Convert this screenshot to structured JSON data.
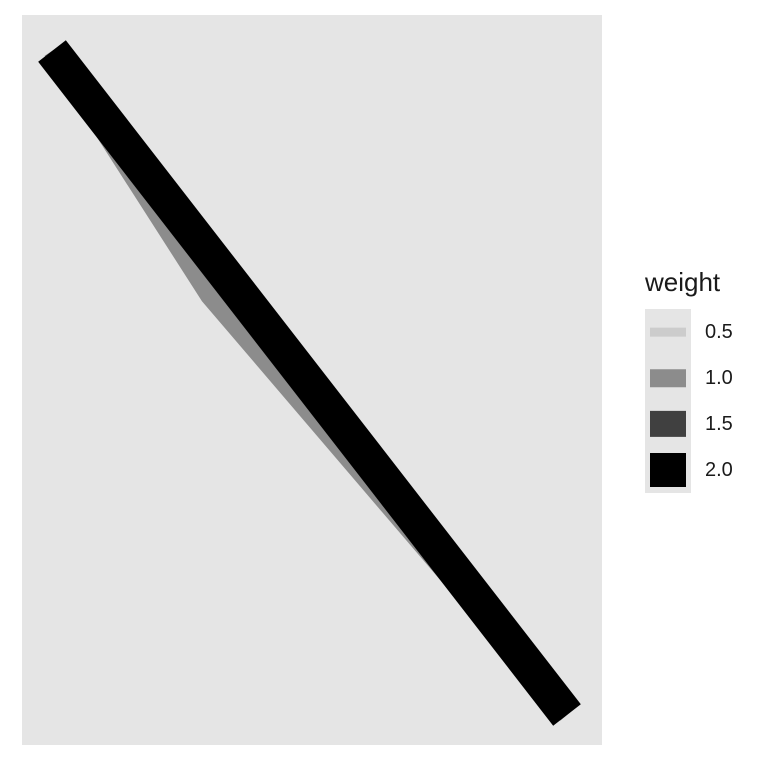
{
  "chart_data": {
    "type": "network",
    "title": "",
    "xlabel": "",
    "ylabel": "",
    "grid": false,
    "axes": false,
    "legend": {
      "title": "weight",
      "placement": "right",
      "entries": [
        {
          "label": "0.5",
          "value": 0.5,
          "color": "#cccccc"
        },
        {
          "label": "1.0",
          "value": 1.0,
          "color": "#8c8c8c"
        },
        {
          "label": "1.5",
          "value": 1.5,
          "color": "#404040"
        },
        {
          "label": "2.0",
          "value": 2.0,
          "color": "#000000"
        }
      ]
    },
    "edges": [
      {
        "weight": 0.5,
        "color": "#cccccc"
      },
      {
        "weight": 1.0,
        "color": "#8c8c8c"
      },
      {
        "weight": 2.0,
        "color": "#000000"
      }
    ]
  }
}
